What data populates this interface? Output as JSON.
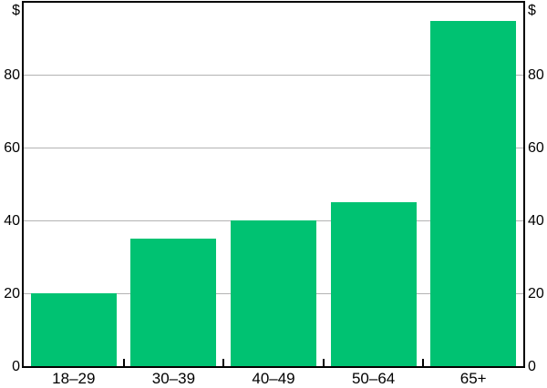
{
  "chart_data": {
    "type": "bar",
    "title": "",
    "unit": "$",
    "categories": [
      "18–29",
      "30–39",
      "40–49",
      "50–64",
      "65+"
    ],
    "values": [
      20,
      35,
      40,
      45,
      95
    ],
    "xlabel": "",
    "ylabel": "$",
    "ylim": [
      0,
      100
    ],
    "yticks": [
      0,
      20,
      40,
      60,
      80
    ],
    "ytick_sides": [
      "left",
      "right"
    ],
    "grid": true,
    "legend": "none",
    "bar_color": "#00C272",
    "gridline_color": "#b3b3b3",
    "frame_color": "#000000",
    "text_color": "#000000",
    "background_color": "#ffffff"
  }
}
